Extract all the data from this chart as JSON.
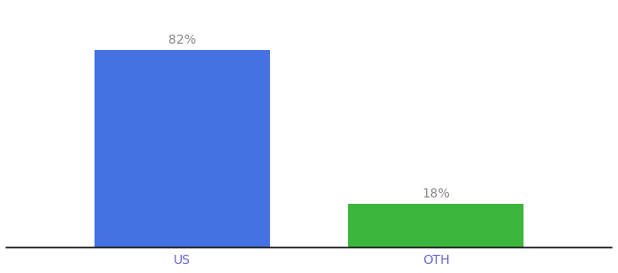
{
  "categories": [
    "US",
    "OTH"
  ],
  "values": [
    82,
    18
  ],
  "bar_colors": [
    "#4472e3",
    "#3cb63c"
  ],
  "labels": [
    "82%",
    "18%"
  ],
  "ylim": [
    0,
    100
  ],
  "background_color": "#ffffff",
  "label_fontsize": 10,
  "tick_fontsize": 10,
  "bar_width": 0.45,
  "x_positions": [
    0.35,
    1.0
  ],
  "xlim": [
    -0.1,
    1.45
  ]
}
